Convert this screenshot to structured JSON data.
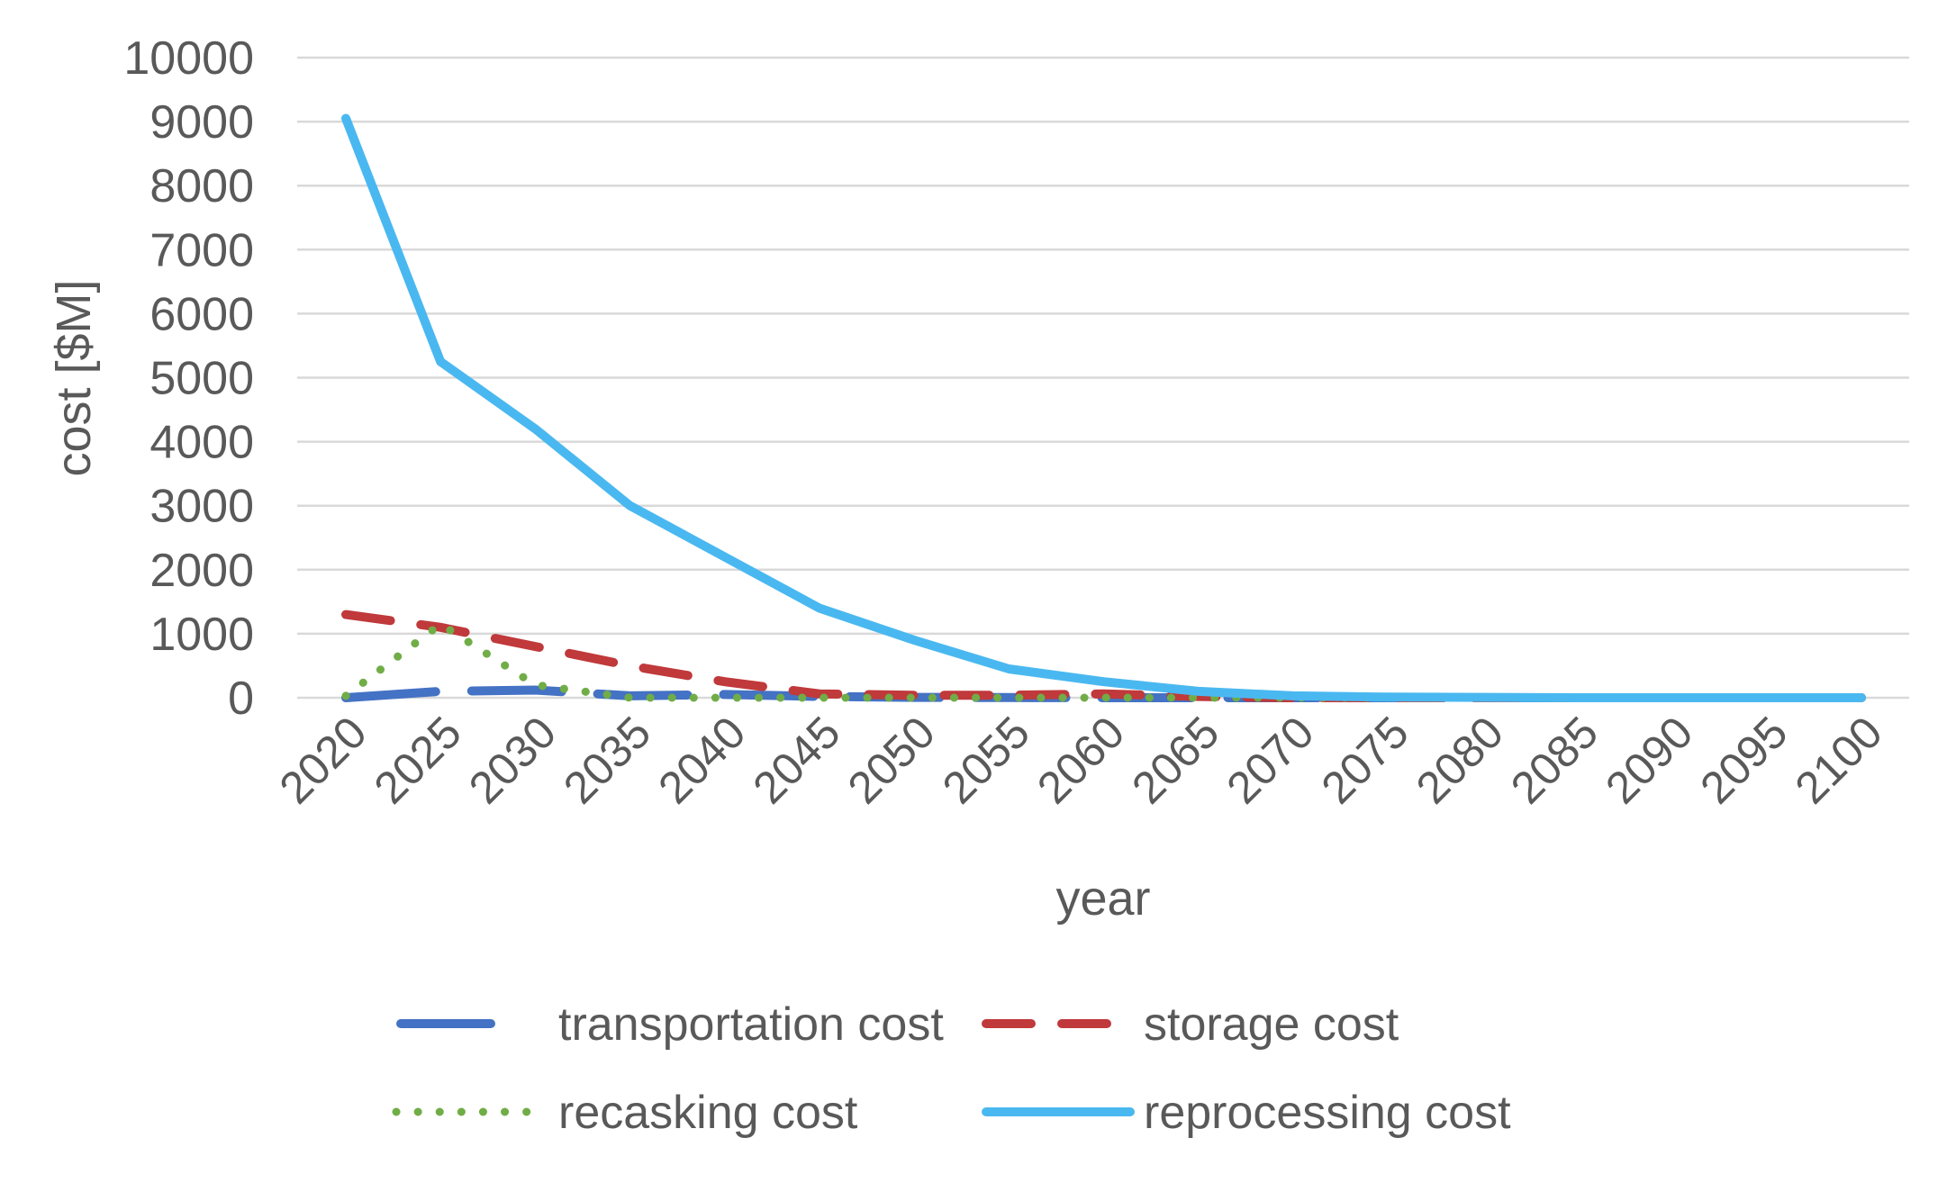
{
  "chart_data": {
    "type": "line",
    "title": "",
    "xlabel": "year",
    "ylabel": "cost [$M]",
    "ylim": [
      0,
      10000
    ],
    "yticks": [
      "0",
      "1000",
      "2000",
      "3000",
      "4000",
      "5000",
      "6000",
      "7000",
      "8000",
      "9000",
      "10000"
    ],
    "categories": [
      "2020",
      "2025",
      "2030",
      "2035",
      "2040",
      "2045",
      "2050",
      "2055",
      "2060",
      "2065",
      "2070",
      "2075",
      "2080",
      "2085",
      "2090",
      "2095",
      "2100"
    ],
    "grid": true,
    "legend_position": "bottom",
    "series": [
      {
        "name": "transportation cost",
        "color": "#4472c4",
        "style": "long-dash",
        "values": [
          0,
          100,
          120,
          30,
          50,
          20,
          5,
          3,
          0,
          0,
          0,
          0,
          0,
          0,
          0,
          0,
          0
        ]
      },
      {
        "name": "storage cost",
        "color": "#c0393b",
        "style": "dash",
        "values": [
          1300,
          1100,
          800,
          500,
          250,
          60,
          40,
          40,
          60,
          20,
          0,
          0,
          0,
          0,
          0,
          0,
          0
        ]
      },
      {
        "name": "recasking cost",
        "color": "#70ad47",
        "style": "dot",
        "values": [
          30,
          1150,
          200,
          0,
          0,
          0,
          0,
          0,
          0,
          0,
          0,
          0,
          0,
          0,
          0,
          0,
          0
        ]
      },
      {
        "name": "reprocessing cost",
        "color": "#4ab8f0",
        "style": "solid",
        "values": [
          9050,
          5250,
          4200,
          3000,
          2200,
          1400,
          900,
          450,
          250,
          100,
          30,
          10,
          5,
          0,
          0,
          0,
          0
        ]
      }
    ]
  }
}
